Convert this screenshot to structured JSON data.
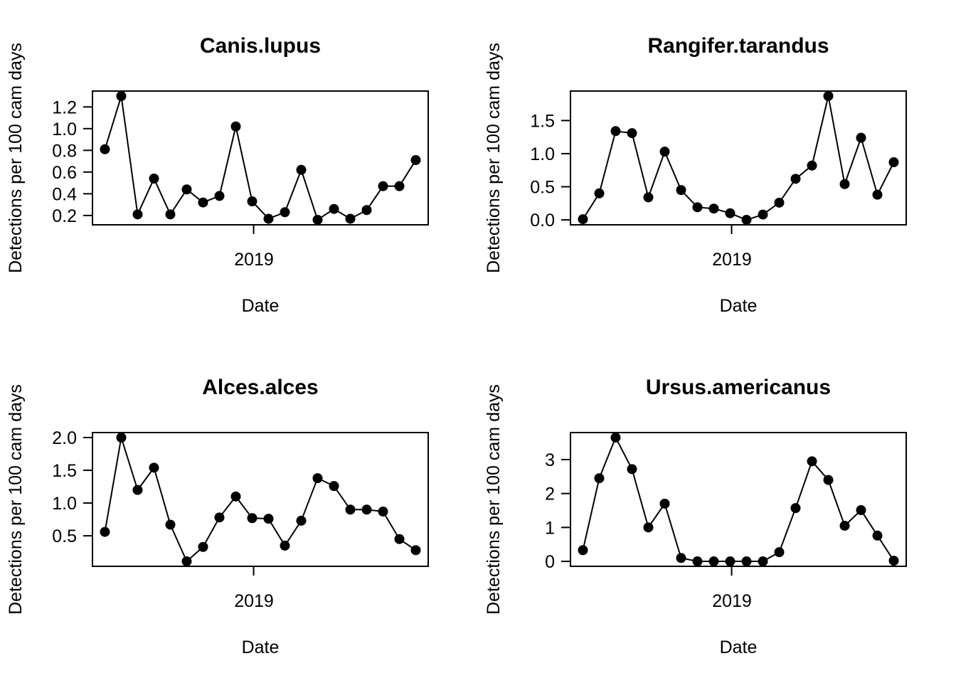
{
  "figure": {
    "background": "#ffffff",
    "foreground": "#000000",
    "layout": {
      "rows": 2,
      "cols": 2
    }
  },
  "chart_data": [
    {
      "type": "line",
      "title": "Canis.lupus",
      "ylabel": "Detections per 100 cam days",
      "xlabel": "Date",
      "x_tick_label": "2019",
      "x_tick_fraction": 0.48,
      "yticks": [
        0.2,
        0.4,
        0.6,
        0.8,
        1.0,
        1.2
      ],
      "ytick_labels": [
        "0.2",
        "0.4",
        "0.6",
        "0.8",
        "1.0",
        "1.2"
      ],
      "ylim": [
        0.114,
        1.346
      ],
      "values": [
        0.81,
        1.3,
        0.21,
        0.54,
        0.21,
        0.44,
        0.32,
        0.38,
        1.02,
        0.33,
        0.17,
        0.23,
        0.62,
        0.16,
        0.26,
        0.17,
        0.25,
        0.47,
        0.47,
        0.71
      ],
      "marker": "filled-circle",
      "line_color": "#000000",
      "grid": false,
      "legend": null
    },
    {
      "type": "line",
      "title": "Rangifer.tarandus",
      "ylabel": "Detections per 100 cam days",
      "xlabel": "Date",
      "x_tick_label": "2019",
      "x_tick_fraction": 0.48,
      "yticks": [
        0.0,
        0.5,
        1.0,
        1.5
      ],
      "ytick_labels": [
        "0.0",
        "0.5",
        "1.0",
        "1.5"
      ],
      "ylim": [
        -0.075,
        1.945
      ],
      "values": [
        0.01,
        0.4,
        1.34,
        1.31,
        0.34,
        1.03,
        0.45,
        0.19,
        0.17,
        0.1,
        0.0,
        0.08,
        0.26,
        0.62,
        0.82,
        1.87,
        0.54,
        1.24,
        0.38,
        0.87
      ],
      "marker": "filled-circle",
      "line_color": "#000000",
      "grid": false,
      "legend": null
    },
    {
      "type": "line",
      "title": "Alces.alces",
      "ylabel": "Detections per 100 cam days",
      "xlabel": "Date",
      "x_tick_label": "2019",
      "x_tick_fraction": 0.48,
      "yticks": [
        0.5,
        1.0,
        1.5,
        2.0
      ],
      "ytick_labels": [
        "0.5",
        "1.0",
        "1.5",
        "2.0"
      ],
      "ylim": [
        0.034,
        2.076
      ],
      "values": [
        0.56,
        2.0,
        1.2,
        1.54,
        0.67,
        0.11,
        0.33,
        0.78,
        1.1,
        0.77,
        0.76,
        0.35,
        0.73,
        1.38,
        1.26,
        0.9,
        0.9,
        0.87,
        0.45,
        0.28
      ],
      "marker": "filled-circle",
      "line_color": "#000000",
      "grid": false,
      "legend": null
    },
    {
      "type": "line",
      "title": "Ursus.americanus",
      "ylabel": "Detections per 100 cam days",
      "xlabel": "Date",
      "x_tick_label": "2019",
      "x_tick_fraction": 0.48,
      "yticks": [
        0,
        1,
        2,
        3
      ],
      "ytick_labels": [
        "0",
        "1",
        "2",
        "3"
      ],
      "ylim": [
        -0.146,
        3.796
      ],
      "values": [
        0.33,
        2.45,
        3.65,
        2.72,
        1.0,
        1.7,
        0.1,
        0.0,
        0.0,
        0.0,
        0.0,
        0.0,
        0.27,
        1.57,
        2.95,
        2.4,
        1.05,
        1.51,
        0.76,
        0.02
      ],
      "marker": "filled-circle",
      "line_color": "#000000",
      "grid": false,
      "legend": null
    }
  ]
}
